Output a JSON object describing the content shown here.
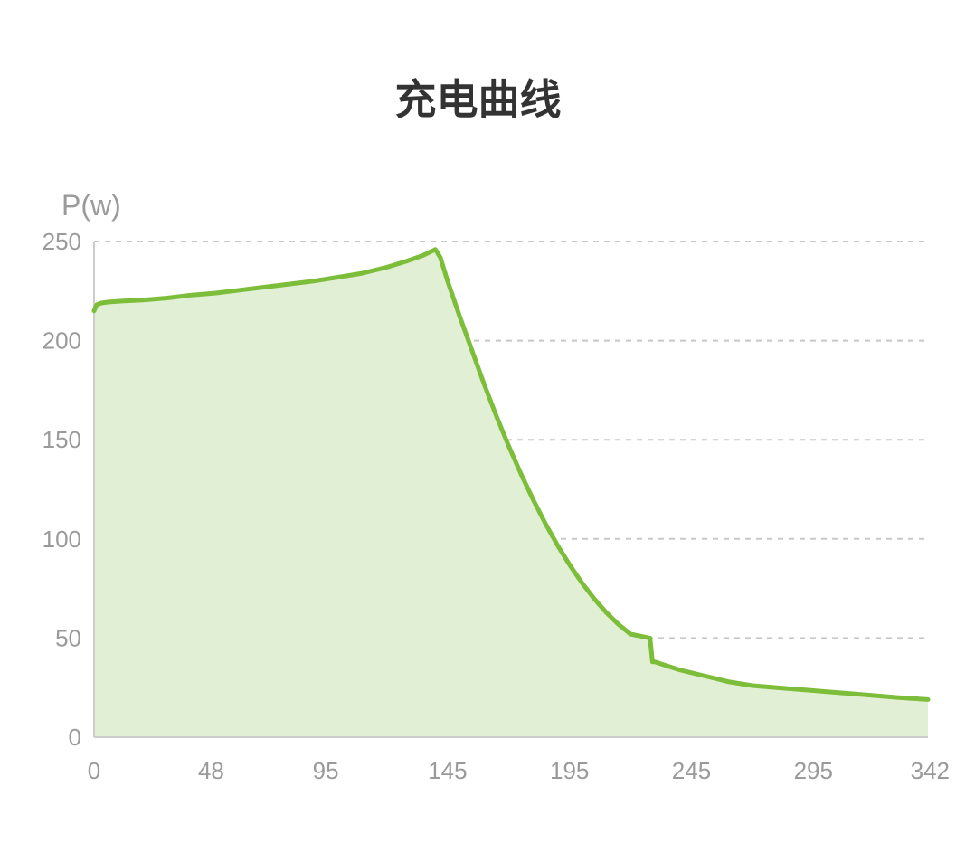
{
  "title": "充电曲线",
  "chart_data": {
    "type": "area",
    "title": "充电曲线",
    "ylabel": "P(w)",
    "xlabel": "",
    "x_ticks": [
      "0",
      "48",
      "95",
      "145",
      "195",
      "245",
      "295",
      "342"
    ],
    "y_ticks": [
      "0",
      "50",
      "100",
      "150",
      "200",
      "250"
    ],
    "xlim": [
      0,
      342
    ],
    "ylim": [
      0,
      250
    ],
    "grid": true,
    "line_color": "#7cbd3a",
    "fill_color": "#e1efd4",
    "series": [
      {
        "x": [
          0,
          1,
          3,
          6,
          12,
          20,
          30,
          40,
          50,
          60,
          70,
          80,
          90,
          100,
          110,
          120,
          128,
          135,
          140,
          142,
          145,
          150,
          155,
          160,
          165,
          170,
          175,
          180,
          185,
          190,
          195,
          200,
          205,
          210,
          215,
          220,
          228,
          229,
          230,
          235,
          240,
          250,
          260,
          270,
          280,
          290,
          300,
          310,
          320,
          330,
          342
        ],
        "y": [
          215,
          218,
          219,
          219.5,
          220,
          220.5,
          221.5,
          223,
          224,
          225.5,
          227,
          228.5,
          230,
          232,
          234,
          237,
          240,
          243,
          246,
          242,
          230,
          212,
          195,
          178,
          162,
          147,
          133,
          120,
          108,
          97,
          87,
          78,
          70,
          63,
          57,
          52,
          50,
          38,
          38,
          36,
          34,
          31,
          28,
          26,
          25,
          24,
          23,
          22,
          21,
          20,
          19
        ]
      }
    ]
  }
}
